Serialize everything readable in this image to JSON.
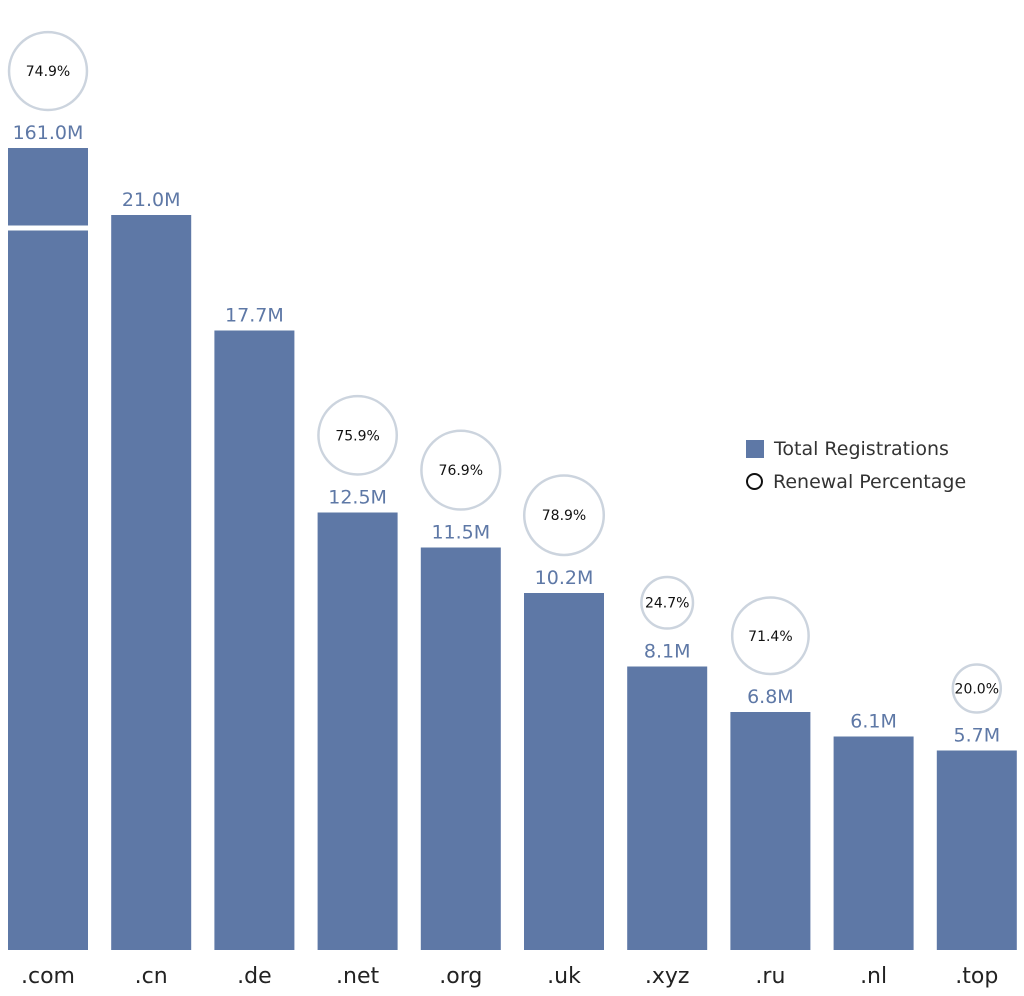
{
  "chart_data": {
    "type": "bar",
    "categories": [
      ".com",
      ".cn",
      ".de",
      ".net",
      ".org",
      ".uk",
      ".xyz",
      ".ru",
      ".nl",
      ".top"
    ],
    "series": [
      {
        "name": "Total Registrations",
        "values": [
          161.0,
          21.0,
          17.7,
          12.5,
          11.5,
          10.2,
          8.1,
          6.8,
          6.1,
          5.7
        ],
        "labels": [
          "161.0M",
          "21.0M",
          "17.7M",
          "12.5M",
          "11.5M",
          "10.2M",
          "8.1M",
          "6.8M",
          "6.1M",
          "5.7M"
        ],
        "unit": "M"
      },
      {
        "name": "Renewal Percentage",
        "values": [
          74.9,
          null,
          null,
          75.9,
          76.9,
          78.9,
          24.7,
          71.4,
          null,
          20.0
        ],
        "labels": [
          "74.9%",
          null,
          null,
          "75.9%",
          "76.9%",
          "78.9%",
          "24.7%",
          "71.4%",
          null,
          "20.0%"
        ],
        "unit": "%"
      }
    ],
    "axis_break": true,
    "title": "",
    "xlabel": "",
    "ylabel": "",
    "legend": {
      "position": "right",
      "items": [
        {
          "label": "Total Registrations",
          "marker": "square"
        },
        {
          "label": "Renewal Percentage",
          "marker": "circle"
        }
      ]
    },
    "grid": false
  },
  "colors": {
    "bar": "#5e78a6",
    "bubble_stroke": "#ccd4de"
  }
}
